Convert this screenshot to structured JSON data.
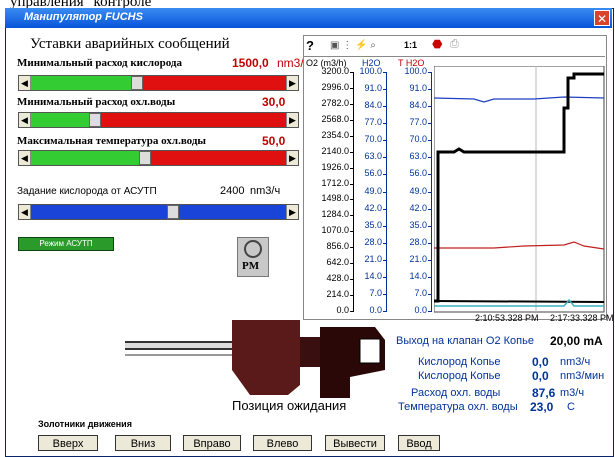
{
  "top_caption": "управления\" контроле",
  "window": {
    "title": "Манипулятор FUCHS"
  },
  "alarms": {
    "heading": "Уставки аварийных сообщений",
    "rows": [
      {
        "label": "Минимальный расход кислорода",
        "value": "1500,0",
        "unit": "nm3/ч"
      },
      {
        "label": "Минимальный расход охл.воды",
        "value": "30,0",
        "unit": "nm3/ч"
      },
      {
        "label": "Максимальная температура охл.воды",
        "value": "50,0",
        "unit": "C"
      },
      {
        "label": "Задание кислорода от АСУТП",
        "value": "2400",
        "unit": "nm3/ч"
      }
    ],
    "mode_button": "Режим АСУТП",
    "icon_label": "PM"
  },
  "trend": {
    "toolbar": [
      "?",
      "1:1"
    ],
    "axis_headers": [
      "O2 (m3/h)",
      "H2O",
      "T H2O"
    ],
    "o2_ticks": [
      "3200.0",
      "2996.0",
      "2782.0",
      "2568.0",
      "2354.0",
      "2140.0",
      "1926.0",
      "1712.0",
      "1498.0",
      "1284.0",
      "1070.0",
      "856.0",
      "642.0",
      "428.0",
      "214.0",
      "0.0"
    ],
    "h2o_ticks": [
      "100.0",
      "91.0",
      "84.0",
      "77.0",
      "70.0",
      "63.0",
      "56.0",
      "49.0",
      "42.0",
      "35.0",
      "28.0",
      "21.0",
      "14.0",
      "7.0",
      "0.0"
    ],
    "t_h2o_ticks": [
      "100.0",
      "91.0",
      "84.0",
      "77.0",
      "70.0",
      "63.0",
      "56.0",
      "49.0",
      "42.0",
      "35.0",
      "28.0",
      "21.0",
      "14.0",
      "7.0",
      "0.0"
    ],
    "time_labels": [
      "2:10:53.328 PM",
      "2:17:33.328 PM"
    ]
  },
  "status": {
    "valve_label": "Выход на клапан O2 Копье",
    "valve_value": "20,00 mA",
    "rows": [
      {
        "label": "Кислород Копье",
        "value": "0,0",
        "unit": "nm3/ч"
      },
      {
        "label": "Кислород Копье",
        "value": "0,0",
        "unit": "nm3/мин"
      },
      {
        "label": "Расход охл. воды",
        "value": "87,6",
        "unit": "m3/ч"
      },
      {
        "label": "Температура охл. воды",
        "value": "23,0",
        "unit": "C"
      }
    ],
    "position": "Позиция ожидания"
  },
  "controls": {
    "heading": "Золотники движения",
    "buttons": [
      "Вверх",
      "Вниз",
      "Вправо",
      "Влево",
      "Вывести",
      "Ввод"
    ]
  }
}
